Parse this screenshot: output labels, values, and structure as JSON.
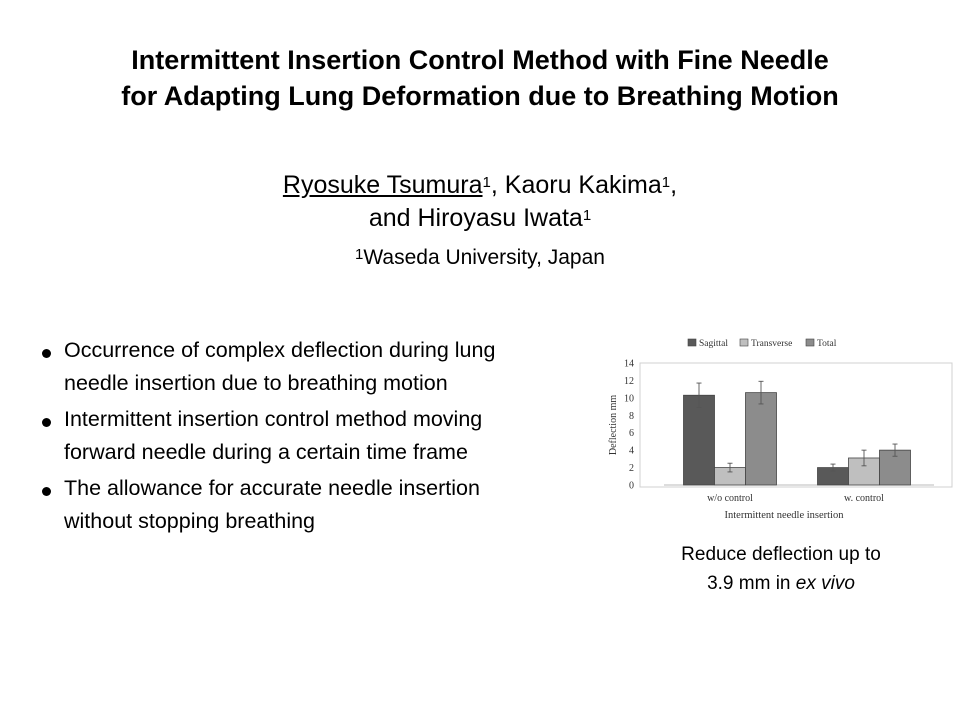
{
  "title": {
    "line1": "Intermittent Insertion Control Method with Fine Needle",
    "line2": "for Adapting Lung Deformation due to Breathing Motion"
  },
  "authors": {
    "a1": "Ryosuke Tsumura",
    "sup1": "1",
    "sep1": ", ",
    "a2": "Kaoru Kakima",
    "sup2": "1",
    "sep2": ",",
    "a3_prefix": "and ",
    "a3": "Hiroyasu Iwata",
    "sup3": "1"
  },
  "affiliation": {
    "sup": "1",
    "text": "Waseda University, Japan"
  },
  "bullets": [
    {
      "l1": "Occurrence of complex deflection during lung",
      "l2": "needle insertion due to breathing motion"
    },
    {
      "l1": "Intermittent insertion control method moving",
      "l2": "forward needle during a certain time frame"
    },
    {
      "l1": "The allowance for accurate needle insertion",
      "l2": "without stopping breathing"
    }
  ],
  "caption": {
    "line1": "Reduce deflection up to",
    "line2_pre": "3.9 mm in ",
    "line2_em": "ex vivo"
  },
  "chart_data": {
    "type": "bar",
    "categories": [
      "w/o control",
      "w. control"
    ],
    "series": [
      {
        "name": "Sagittal",
        "values": [
          10.3,
          2.0
        ],
        "errors": [
          1.4,
          0.4
        ],
        "color": "#595959"
      },
      {
        "name": "Transverse",
        "values": [
          2.0,
          3.1
        ],
        "errors": [
          0.5,
          0.9
        ],
        "color": "#bfbfbf"
      },
      {
        "name": "Total",
        "values": [
          10.6,
          4.0
        ],
        "errors": [
          1.3,
          0.7
        ],
        "color": "#8c8c8c"
      }
    ],
    "xlabel": "Intermittent needle insertion",
    "ylabel": "Deflection mm",
    "yticks": [
      "0",
      "2",
      "4",
      "6",
      "8",
      "10",
      "12",
      "14"
    ],
    "ylim": [
      0,
      14
    ],
    "legend": "top",
    "grid": false
  }
}
